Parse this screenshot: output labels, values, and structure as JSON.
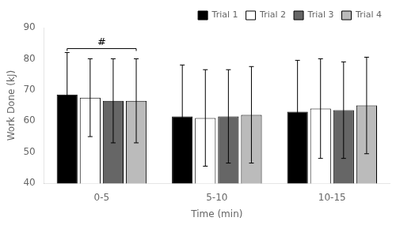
{
  "chart_data": {
    "type": "bar",
    "categories": [
      "0-5",
      "5-10",
      "10-15"
    ],
    "series": [
      {
        "name": "Trial 1",
        "color": "#000000",
        "values": [
          68.5,
          61.5,
          63.0
        ],
        "errors": [
          13.5,
          16.5,
          16.5
        ]
      },
      {
        "name": "Trial 2",
        "color": "#ffffff",
        "values": [
          67.5,
          61.0,
          64.0
        ],
        "errors": [
          12.5,
          15.5,
          16.0
        ]
      },
      {
        "name": "Trial 3",
        "color": "#666666",
        "values": [
          66.5,
          61.5,
          63.5
        ],
        "errors": [
          13.5,
          15.0,
          15.5
        ]
      },
      {
        "name": "Trial 4",
        "color": "#bbbbbb",
        "values": [
          66.5,
          62.0,
          65.0
        ],
        "errors": [
          13.5,
          15.5,
          15.5
        ]
      }
    ],
    "xlabel": "Time (min)",
    "ylabel": "Work Done (kJ)",
    "ylim": [
      40,
      90
    ],
    "yticks": [
      40,
      50,
      60,
      70,
      80,
      90
    ],
    "grid": false,
    "legend": "upper right",
    "annotations": [
      {
        "text": "#",
        "category": "0-5"
      }
    ]
  }
}
